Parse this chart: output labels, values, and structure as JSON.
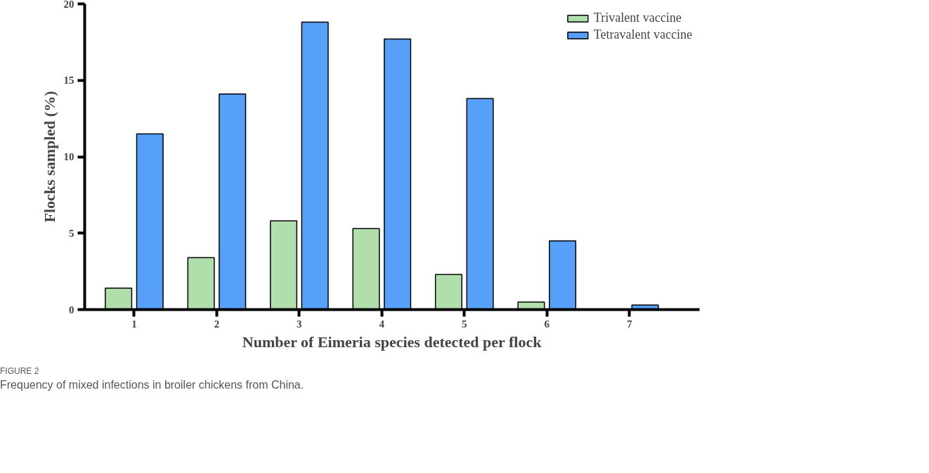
{
  "chart_data": {
    "type": "bar",
    "xlabel": "Number of Eimeria species detected per flock",
    "ylabel": "Flocks sampled (%)",
    "categories": [
      "1",
      "2",
      "3",
      "4",
      "5",
      "6",
      "7"
    ],
    "series": [
      {
        "name": "Trivalent vaccine",
        "color": "#b0dfac",
        "values": [
          1.4,
          3.4,
          5.8,
          5.3,
          2.3,
          0.5,
          null
        ]
      },
      {
        "name": "Tetravalent vaccine",
        "color": "#56a0fa",
        "values": [
          11.5,
          14.1,
          18.8,
          17.7,
          13.8,
          4.5,
          0.3
        ]
      }
    ],
    "ylim": [
      0,
      20
    ],
    "yticks": [
      0,
      5,
      10,
      15,
      20
    ],
    "grid": false,
    "legend": "top right",
    "annotations": [
      "FIGURE 2",
      "Frequency of mixed infections in broiler chickens from China."
    ]
  }
}
